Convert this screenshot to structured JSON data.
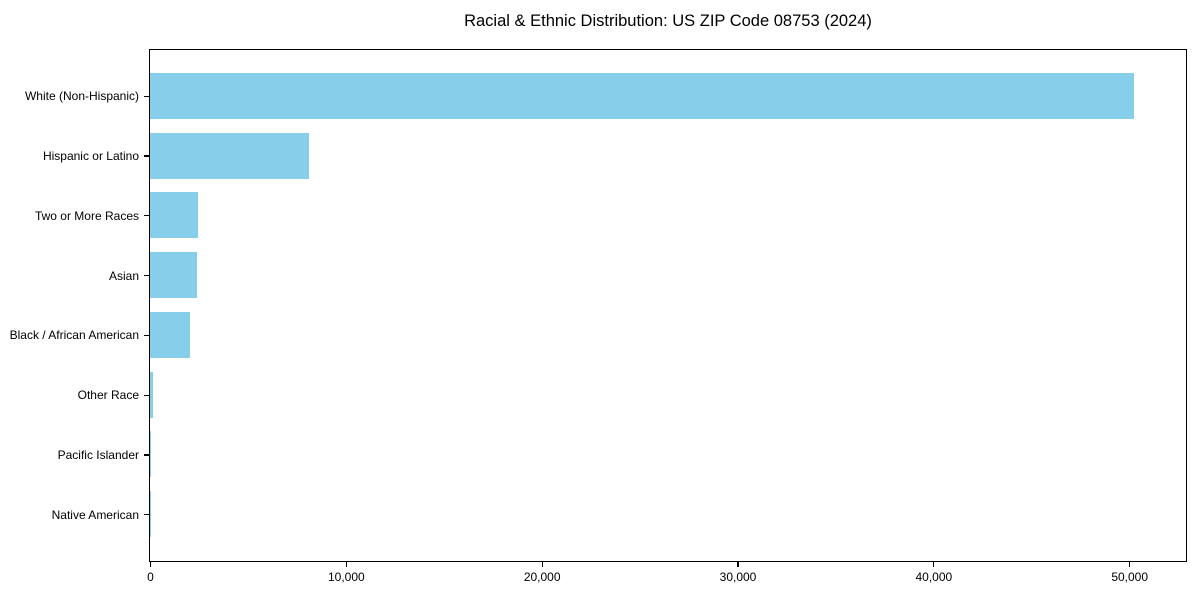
{
  "title": "Racial & Ethnic Distribution: US ZIP Code 08753 (2024)",
  "colors": {
    "bar": "#87CEEB",
    "axis": "#000000",
    "background": "#FFFFFF",
    "text": "#000000"
  },
  "chart_data": {
    "type": "bar",
    "orientation": "horizontal",
    "title": "Racial & Ethnic Distribution: US ZIP Code 08753 (2024)",
    "categories": [
      "White (Non-Hispanic)",
      "Hispanic or Latino",
      "Two or More Races",
      "Asian",
      "Black / African American",
      "Other Race",
      "Pacific Islander",
      "Native American"
    ],
    "values": [
      50240,
      8100,
      2430,
      2390,
      2020,
      150,
      30,
      15
    ],
    "xlabel": "",
    "ylabel": "",
    "xlim": [
      0,
      52850
    ],
    "xticks": [
      0,
      10000,
      20000,
      30000,
      40000,
      50000
    ],
    "xtick_labels": [
      "0",
      "10,000",
      "20,000",
      "30,000",
      "40,000",
      "50,000"
    ],
    "bar_color": "#87CEEB",
    "grid": false,
    "legend": null,
    "categories_order": "top-to-bottom"
  }
}
